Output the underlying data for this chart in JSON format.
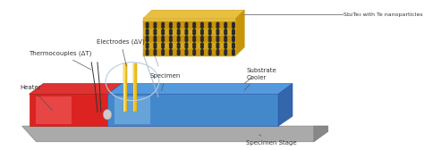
{
  "fig_width": 4.74,
  "fig_height": 1.68,
  "dpi": 100,
  "bg_color": "#ffffff",
  "heater_color": "#dd2222",
  "heater_highlight": "#ee6666",
  "cooler_color": "#4488cc",
  "cooler_highlight": "#99bbdd",
  "stage_color": "#aaaaaa",
  "stage_edge": "#888888",
  "electrode_color": "#f0c020",
  "electrode_edge": "#c09000",
  "electrode_highlight": "#fff8aa",
  "tc_color": "#444444",
  "ellipse_color": "#bbccdd",
  "ellipse_face": "#eef4f8",
  "nano_gold1": "#c8940a",
  "nano_gold2": "#d4a820",
  "nano_gold3": "#e8c040",
  "nano_dot": "#2a2a2a",
  "annotation_color": "#333333",
  "arrow_color": "#555555",
  "label_fontsize": 5.0,
  "labels": {
    "heater": "Heater",
    "cooler": "Cooler",
    "substrate": "Substrate",
    "specimen": "Specimen",
    "specimen_stage": "Specimen Stage",
    "thermocouples": "Thermocouples (ΔT)",
    "electrodes": "Electrodes (ΔV)",
    "nano": "Sb₂Te₃ with Te nanoparticles"
  }
}
